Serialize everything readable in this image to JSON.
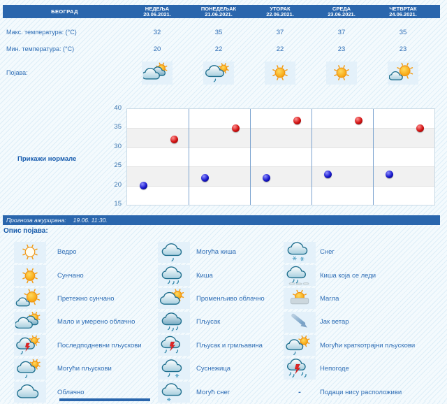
{
  "colors": {
    "header_bg": "#2a66ad",
    "text_blue": "#2e6db5",
    "title_blue": "#1559a9",
    "icon_cell_bg": "#e4f1fa",
    "max_dot": "#cc1414",
    "min_dot": "#1717cd",
    "chart_separator": "#7ba3cf",
    "chart_band": "#f1f1f1"
  },
  "header": {
    "city": "БЕОГРАД",
    "days": [
      {
        "name": "НЕДЕЉА",
        "date": "20.06.2021."
      },
      {
        "name": "ПОНЕДЕЉАК",
        "date": "21.06.2021."
      },
      {
        "name": "УТОРАК",
        "date": "22.06.2021."
      },
      {
        "name": "СРЕДА",
        "date": "23.06.2021."
      },
      {
        "name": "ЧЕТВРТАК",
        "date": "24.06.2021."
      }
    ]
  },
  "table": {
    "max_label": "Макс. температура: (°C)",
    "min_label": "Мин. температура: (°C)",
    "phenomena_label": "Појава:",
    "max_values": [
      32,
      35,
      37,
      37,
      35
    ],
    "min_values": [
      20,
      22,
      22,
      23,
      23
    ],
    "phenomena_icons": [
      "partly-cloudy",
      "possible-showers",
      "sunny",
      "sunny",
      "mostly-sunny"
    ]
  },
  "chart_data": {
    "type": "scatter",
    "categories": [
      "20.06.2021.",
      "21.06.2021.",
      "22.06.2021.",
      "23.06.2021.",
      "24.06.2021."
    ],
    "day_names": [
      "НЕДЕЉА",
      "ПОНЕДЕЉАК",
      "УТОРАК",
      "СРЕДА",
      "ЧЕТВРТАК"
    ],
    "series": [
      {
        "name": "Макс. температура (°C)",
        "color": "#cc1414",
        "values": [
          32,
          35,
          37,
          37,
          35
        ]
      },
      {
        "name": "Мин. температура (°C)",
        "color": "#1717cd",
        "values": [
          20,
          22,
          22,
          23,
          23
        ]
      }
    ],
    "ylim": [
      15,
      40
    ],
    "ytick_step": 5,
    "yticks": [
      15,
      20,
      25,
      30,
      35,
      40
    ],
    "grid": true,
    "legend_position": "none"
  },
  "normals_button": "Прикажи нормале",
  "updated": {
    "label": "Прогноза ажурирана:",
    "value": "19.06. 11:30."
  },
  "legend": {
    "title": "Опис појава:",
    "no_data_symbol": "-",
    "columns": [
      [
        {
          "icon": "clear",
          "label": "Ведро"
        },
        {
          "icon": "sunny",
          "label": "Сунчано"
        },
        {
          "icon": "mostly-sunny",
          "label": "Претежно сунчано"
        },
        {
          "icon": "partly-cloudy",
          "label": "Мало и умерено облачно"
        },
        {
          "icon": "afternoon-showers",
          "label": "Последподневни пљускови"
        },
        {
          "icon": "possible-showers",
          "label": "Могући пљускови"
        },
        {
          "icon": "cloudy",
          "label": "Облачно"
        }
      ],
      [
        {
          "icon": "possible-rain",
          "label": "Могућа киша"
        },
        {
          "icon": "rain",
          "label": "Киша"
        },
        {
          "icon": "variable-clouds",
          "label": "Променљиво облачно"
        },
        {
          "icon": "shower",
          "label": "Пљусак"
        },
        {
          "icon": "shower-thunder",
          "label": "Пљусак и грмљавина"
        },
        {
          "icon": "sleet",
          "label": "Суснежица"
        },
        {
          "icon": "possible-snow",
          "label": "Могућ снег"
        }
      ],
      [
        {
          "icon": "snow",
          "label": "Снег"
        },
        {
          "icon": "freezing-rain",
          "label": "Киша која се леди"
        },
        {
          "icon": "fog",
          "label": "Магла"
        },
        {
          "icon": "strong-wind",
          "label": "Јак ветар"
        },
        {
          "icon": "possible-brief-showers",
          "label": "Могући краткотрајни пљускови"
        },
        {
          "icon": "storms",
          "label": "Непогоде"
        },
        {
          "icon": "no-data",
          "label": "Подаци нису расположиви"
        }
      ]
    ]
  }
}
